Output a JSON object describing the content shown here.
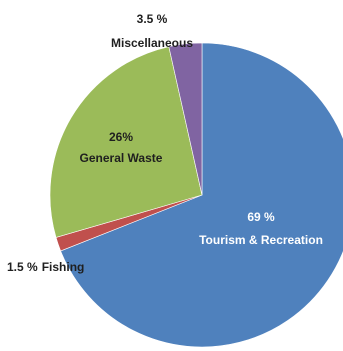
{
  "chart_data": {
    "type": "pie",
    "title": "",
    "slices": [
      {
        "name": "Tourism & Recreation",
        "value": 69,
        "value_text": "69 %",
        "label_text": "Tourism & Recreation",
        "color": "#4f81bd",
        "label_color": "#ffffff"
      },
      {
        "name": "Fishing",
        "value": 1.5,
        "value_text": "1.5 %",
        "label_text": "Fishing",
        "color": "#c0504d",
        "label_color": "#1f1f1f"
      },
      {
        "name": "General Waste",
        "value": 26,
        "value_text": "26%",
        "label_text": "General Waste",
        "color": "#9bbb59",
        "label_color": "#1f1f1f"
      },
      {
        "name": "Miscellaneous",
        "value": 3.5,
        "value_text": "3.5 %",
        "label_text": "Miscellaneous",
        "color": "#8064a2",
        "label_color": "#1f1f1f"
      }
    ],
    "start_angle": "12 o'clock",
    "direction": "clockwise",
    "legend": "none"
  }
}
